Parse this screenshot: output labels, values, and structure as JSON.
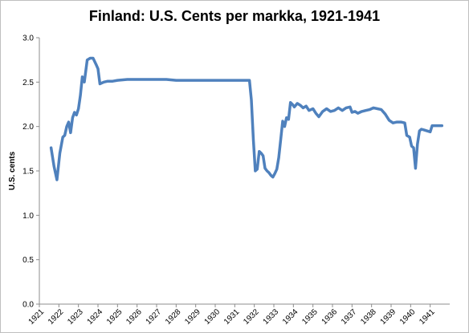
{
  "chart_data": {
    "type": "line",
    "title": "Finland: U.S. Cents per markka, 1921-1941",
    "ylabel": "U.S. cents",
    "xlabel": "",
    "ylim": [
      0,
      3
    ],
    "yticks": [
      "0.0",
      "0.5",
      "1.0",
      "1.5",
      "2.0",
      "2.5",
      "3.0"
    ],
    "xlim": [
      1921,
      1942
    ],
    "xticks": [
      "1921",
      "1922",
      "1923",
      "1924",
      "1925",
      "1926",
      "1927",
      "1928",
      "1929",
      "1930",
      "1931",
      "1932",
      "1933",
      "1934",
      "1935",
      "1936",
      "1937",
      "1938",
      "1939",
      "1940",
      "1941"
    ],
    "grid": false,
    "line_color": "#4f81bd",
    "series": [
      {
        "x": [
          1921.6,
          1921.75,
          1921.9,
          1922.05,
          1922.2,
          1922.3,
          1922.4,
          1922.5,
          1922.6,
          1922.7,
          1922.8,
          1922.9,
          1923.0,
          1923.1,
          1923.2,
          1923.3,
          1923.45,
          1923.6,
          1923.75,
          1923.9,
          1924.0,
          1924.1,
          1924.3,
          1924.5,
          1924.75,
          1925.0,
          1925.5,
          1926.0,
          1926.5,
          1927.0,
          1927.5,
          1928.0,
          1928.5,
          1929.0,
          1929.5,
          1930.0,
          1930.5,
          1931.0,
          1931.5,
          1931.75,
          1931.85,
          1931.95,
          1932.05,
          1932.15,
          1932.25,
          1932.35,
          1932.45,
          1932.55,
          1932.65,
          1932.75,
          1932.85,
          1932.95,
          1933.05,
          1933.15,
          1933.25,
          1933.35,
          1933.45,
          1933.55,
          1933.65,
          1933.75,
          1933.85,
          1933.95,
          1934.05,
          1934.2,
          1934.35,
          1934.5,
          1934.65,
          1934.8,
          1935.0,
          1935.15,
          1935.3,
          1935.5,
          1935.7,
          1935.9,
          1936.1,
          1936.3,
          1936.5,
          1936.7,
          1936.9,
          1937.0,
          1937.15,
          1937.3,
          1937.5,
          1937.7,
          1937.9,
          1938.1,
          1938.3,
          1938.5,
          1938.7,
          1938.9,
          1939.1,
          1939.3,
          1939.5,
          1939.7,
          1939.8,
          1939.95,
          1940.05,
          1940.15,
          1940.25,
          1940.35,
          1940.45,
          1940.55,
          1940.7,
          1940.85,
          1941.0,
          1941.1,
          1941.3,
          1941.6
        ],
        "values": [
          1.76,
          1.55,
          1.4,
          1.7,
          1.88,
          1.9,
          2.0,
          2.05,
          1.93,
          2.1,
          2.16,
          2.13,
          2.2,
          2.35,
          2.56,
          2.5,
          2.75,
          2.77,
          2.77,
          2.7,
          2.65,
          2.48,
          2.5,
          2.51,
          2.51,
          2.52,
          2.53,
          2.53,
          2.53,
          2.53,
          2.53,
          2.52,
          2.52,
          2.52,
          2.52,
          2.52,
          2.52,
          2.52,
          2.52,
          2.52,
          2.3,
          1.85,
          1.5,
          1.52,
          1.72,
          1.7,
          1.67,
          1.53,
          1.5,
          1.48,
          1.45,
          1.43,
          1.47,
          1.52,
          1.65,
          1.85,
          2.06,
          2.0,
          2.1,
          2.08,
          2.27,
          2.25,
          2.22,
          2.26,
          2.24,
          2.21,
          2.23,
          2.18,
          2.2,
          2.15,
          2.11,
          2.17,
          2.2,
          2.17,
          2.18,
          2.21,
          2.18,
          2.21,
          2.22,
          2.16,
          2.17,
          2.15,
          2.17,
          2.18,
          2.19,
          2.21,
          2.2,
          2.19,
          2.14,
          2.07,
          2.04,
          2.05,
          2.05,
          2.04,
          1.9,
          1.88,
          1.78,
          1.76,
          1.53,
          1.8,
          1.95,
          1.97,
          1.96,
          1.95,
          1.94,
          2.01,
          2.01,
          2.01
        ]
      }
    ]
  }
}
